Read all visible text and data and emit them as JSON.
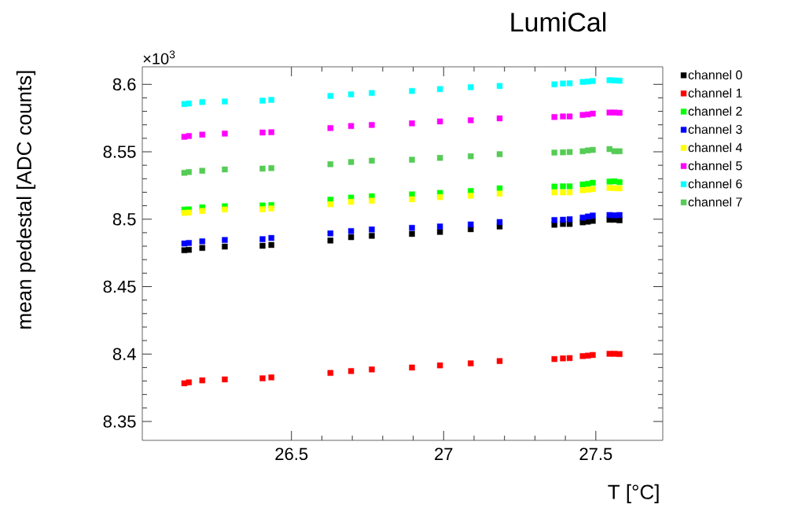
{
  "chart_data": {
    "type": "scatter",
    "title": "LumiCal",
    "xlabel": "T [°C]",
    "ylabel": "mean pedestal [ADC counts]",
    "annotations": [
      "×10$^{3}$"
    ],
    "x": [
      26.148,
      26.163,
      26.207,
      26.281,
      26.405,
      26.434,
      26.628,
      26.696,
      26.764,
      26.896,
      26.988,
      27.089,
      27.184,
      27.364,
      27.392,
      27.414,
      27.457,
      27.474,
      27.49,
      27.545,
      27.561,
      27.578
    ],
    "xlim": [
      26.01,
      27.72
    ],
    "xticks": [
      26.5,
      27,
      27.5
    ],
    "ylim": [
      8.336,
      8.613
    ],
    "yticks": [
      8.35,
      8.4,
      8.45,
      8.5,
      8.55,
      8.6
    ],
    "marker": "square",
    "legend": "right",
    "series": [
      {
        "name": "channel 0",
        "color": "#000000",
        "values": [
          8.477,
          8.4773,
          8.4787,
          8.4797,
          8.4803,
          8.4809,
          8.4842,
          8.4867,
          8.4877,
          8.4891,
          8.4906,
          8.4926,
          8.4946,
          8.4959,
          8.4965,
          8.4965,
          8.4977,
          8.4982,
          8.4988,
          8.4996,
          8.4996,
          8.4992
        ]
      },
      {
        "name": "channel 1",
        "color": "#ff0000",
        "values": [
          8.3783,
          8.379,
          8.3805,
          8.3812,
          8.382,
          8.3827,
          8.386,
          8.3874,
          8.3886,
          8.39,
          8.3916,
          8.3931,
          8.3948,
          8.3963,
          8.3968,
          8.397,
          8.3985,
          8.3988,
          8.3993,
          8.4002,
          8.4002,
          8.4
        ]
      },
      {
        "name": "channel 2",
        "color": "#00ff00",
        "values": [
          8.5071,
          8.5073,
          8.5088,
          8.5096,
          8.5102,
          8.5105,
          8.5145,
          8.516,
          8.517,
          8.5184,
          8.5195,
          8.5209,
          8.5229,
          8.5242,
          8.5244,
          8.5244,
          8.5258,
          8.5262,
          8.527,
          8.5279,
          8.5281,
          8.5275
        ]
      },
      {
        "name": "channel 3",
        "color": "#0000ff",
        "values": [
          8.482,
          8.4824,
          8.4836,
          8.4846,
          8.4852,
          8.4861,
          8.4895,
          8.4912,
          8.4924,
          8.4936,
          8.4946,
          8.4961,
          8.4979,
          8.4994,
          8.4996,
          8.5,
          8.5012,
          8.502,
          8.5027,
          8.5031,
          8.5029,
          8.5031
        ]
      },
      {
        "name": "channel 4",
        "color": "#ffff00",
        "values": [
          8.5047,
          8.5049,
          8.5061,
          8.5072,
          8.5074,
          8.508,
          8.5111,
          8.5129,
          8.5137,
          8.5148,
          8.5164,
          8.5174,
          8.519,
          8.5199,
          8.5199,
          8.5199,
          8.5215,
          8.5219,
          8.5223,
          8.5232,
          8.523,
          8.5229
        ]
      },
      {
        "name": "channel 5",
        "color": "#ff00ff",
        "values": [
          8.5611,
          8.5617,
          8.5627,
          8.5635,
          8.5643,
          8.5645,
          8.5676,
          8.5691,
          8.5699,
          8.5711,
          8.5725,
          8.5734,
          8.5748,
          8.5758,
          8.5762,
          8.5762,
          8.5773,
          8.5777,
          8.5783,
          8.5791,
          8.5791,
          8.5789
        ]
      },
      {
        "name": "channel 6",
        "color": "#00ffff",
        "values": [
          8.5854,
          8.5858,
          8.5869,
          8.5873,
          8.5879,
          8.5885,
          8.5914,
          8.5926,
          8.5936,
          8.5951,
          8.5965,
          8.5979,
          8.5988,
          8.6,
          8.6006,
          8.6008,
          8.6018,
          8.6021,
          8.6025,
          8.6031,
          8.6029,
          8.6027
        ]
      },
      {
        "name": "channel 7",
        "color": "#55cc55",
        "values": [
          8.5344,
          8.535,
          8.5359,
          8.5369,
          8.5375,
          8.5379,
          8.5408,
          8.5424,
          8.5434,
          8.5441,
          8.5455,
          8.5467,
          8.5482,
          8.5494,
          8.5496,
          8.5498,
          8.5504,
          8.551,
          8.5514,
          8.552,
          8.5504,
          8.5504
        ]
      }
    ]
  }
}
